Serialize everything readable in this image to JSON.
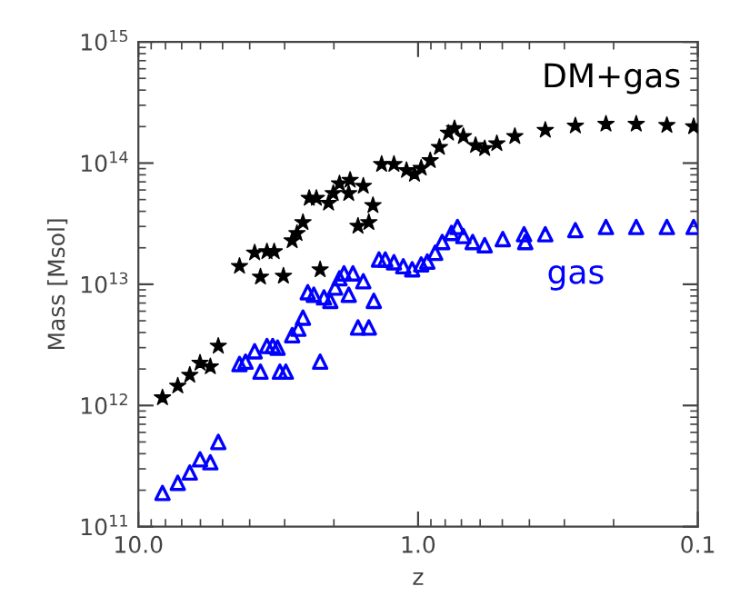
{
  "chart_data": {
    "type": "scatter",
    "xlabel": "z",
    "ylabel": "Mass [Msol]",
    "log": "xy",
    "grid": false,
    "legend": false,
    "xlim": [
      10,
      0.1
    ],
    "xticks": [
      {
        "value": 10,
        "label": "10.0"
      },
      {
        "value": 1,
        "label": "1.0"
      },
      {
        "value": 0.1,
        "label": "0.1"
      }
    ],
    "ylim": [
      100000000000.0,
      1000000000000000.0
    ],
    "yticks": [
      {
        "value": 100000000000.0,
        "label": "10$^{11}$"
      },
      {
        "value": 1000000000000.0,
        "label": "10$^{12}$"
      },
      {
        "value": 10000000000000.0,
        "label": "10$^{13}$"
      },
      {
        "value": 100000000000000.0,
        "label": "10$^{14}$"
      },
      {
        "value": 1000000000000000.0,
        "label": "10$^{15}$"
      }
    ],
    "series": [
      {
        "name": "DM+gas",
        "color": "#000000",
        "marker": "star",
        "x": [
          8.2,
          7.23,
          6.55,
          6.02,
          5.53,
          5.18,
          4.35,
          3.84,
          3.66,
          3.47,
          3.27,
          3.03,
          2.82,
          2.71,
          2.58,
          2.45,
          2.31,
          2.24,
          2.09,
          2.01,
          1.91,
          1.77,
          1.75,
          1.57,
          1.64,
          1.5,
          1.45,
          1.35,
          1.22,
          1.1,
          1.03,
          0.975,
          0.905,
          0.839,
          0.779,
          0.741,
          0.689,
          0.623,
          0.578,
          0.523,
          0.451,
          0.351,
          0.274,
          0.213,
          0.166,
          0.129,
          0.1035
        ],
        "values": [
          1160000000000.0,
          1450000000000.0,
          1780000000000.0,
          2240000000000.0,
          2090000000000.0,
          3090000000000.0,
          14100000000000.0,
          18200000000000.0,
          11500000000000.0,
          18600000000000.0,
          18600000000000.0,
          11700000000000.0,
          22900000000000.0,
          26300000000000.0,
          32400000000000.0,
          51300000000000.0,
          51300000000000.0,
          13200000000000.0,
          46800000000000.0,
          56200000000000.0,
          67600000000000.0,
          56200000000000.0,
          72400000000000.0,
          64600000000000.0,
          30200000000000.0,
          32400000000000.0,
          44700000000000.0,
          97700000000000.0,
          97700000000000.0,
          87100000000000.0,
          81000000000000.0,
          91000000000000.0,
          105000000000000.0,
          135000000000000.0,
          177000000000000.0,
          193000000000000.0,
          166000000000000.0,
          140000000000000.0,
          132000000000000.0,
          145000000000000.0,
          166000000000000.0,
          187000000000000.0,
          203000000000000.0,
          210000000000000.0,
          210000000000000.0,
          205000000000000.0,
          200000000000000.0
        ]
      },
      {
        "name": "gas",
        "color": "#0000ff",
        "marker": "triangle",
        "x": [
          8.2,
          7.23,
          6.55,
          6.02,
          5.53,
          5.18,
          4.35,
          4.14,
          3.84,
          3.66,
          3.47,
          3.31,
          3.18,
          3.12,
          2.97,
          2.82,
          2.68,
          2.58,
          2.48,
          2.36,
          2.24,
          2.17,
          2.06,
          1.98,
          1.91,
          1.84,
          1.77,
          1.71,
          1.64,
          1.57,
          1.5,
          1.44,
          1.38,
          1.31,
          1.22,
          1.13,
          1.05,
          0.975,
          0.927,
          0.869,
          0.82,
          0.76,
          0.723,
          0.689,
          0.638,
          0.578,
          0.498,
          0.418,
          0.414,
          0.351,
          0.274,
          0.213,
          0.166,
          0.129,
          0.1035
        ],
        "values": [
          190000000000.0,
          230000000000.0,
          280000000000.0,
          360000000000.0,
          340000000000.0,
          500000000000.0,
          2200000000000.0,
          2300000000000.0,
          2800000000000.0,
          1900000000000.0,
          3100000000000.0,
          3100000000000.0,
          3000000000000.0,
          1900000000000.0,
          1900000000000.0,
          3800000000000.0,
          4300000000000.0,
          5300000000000.0,
          8600000000000.0,
          8200000000000.0,
          2300000000000.0,
          7800000000000.0,
          7300000000000.0,
          9400000000000.0,
          11200000000000.0,
          12300000000000.0,
          8200000000000.0,
          12300000000000.0,
          4400000000000.0,
          10600000000000.0,
          4400000000000.0,
          7300000000000.0,
          16000000000000.0,
          16000000000000.0,
          15200000000000.0,
          14100000000000.0,
          13300000000000.0,
          14600000000000.0,
          15400000000000.0,
          18200000000000.0,
          22300000000000.0,
          26500000000000.0,
          29700000000000.0,
          25000000000000.0,
          22300000000000.0,
          21000000000000.0,
          23600000000000.0,
          25900000000000.0,
          22300000000000.0,
          25900000000000.0,
          28000000000000.0,
          29700000000000.0,
          29700000000000.0,
          29700000000000.0,
          29700000000000.0
        ]
      }
    ]
  }
}
